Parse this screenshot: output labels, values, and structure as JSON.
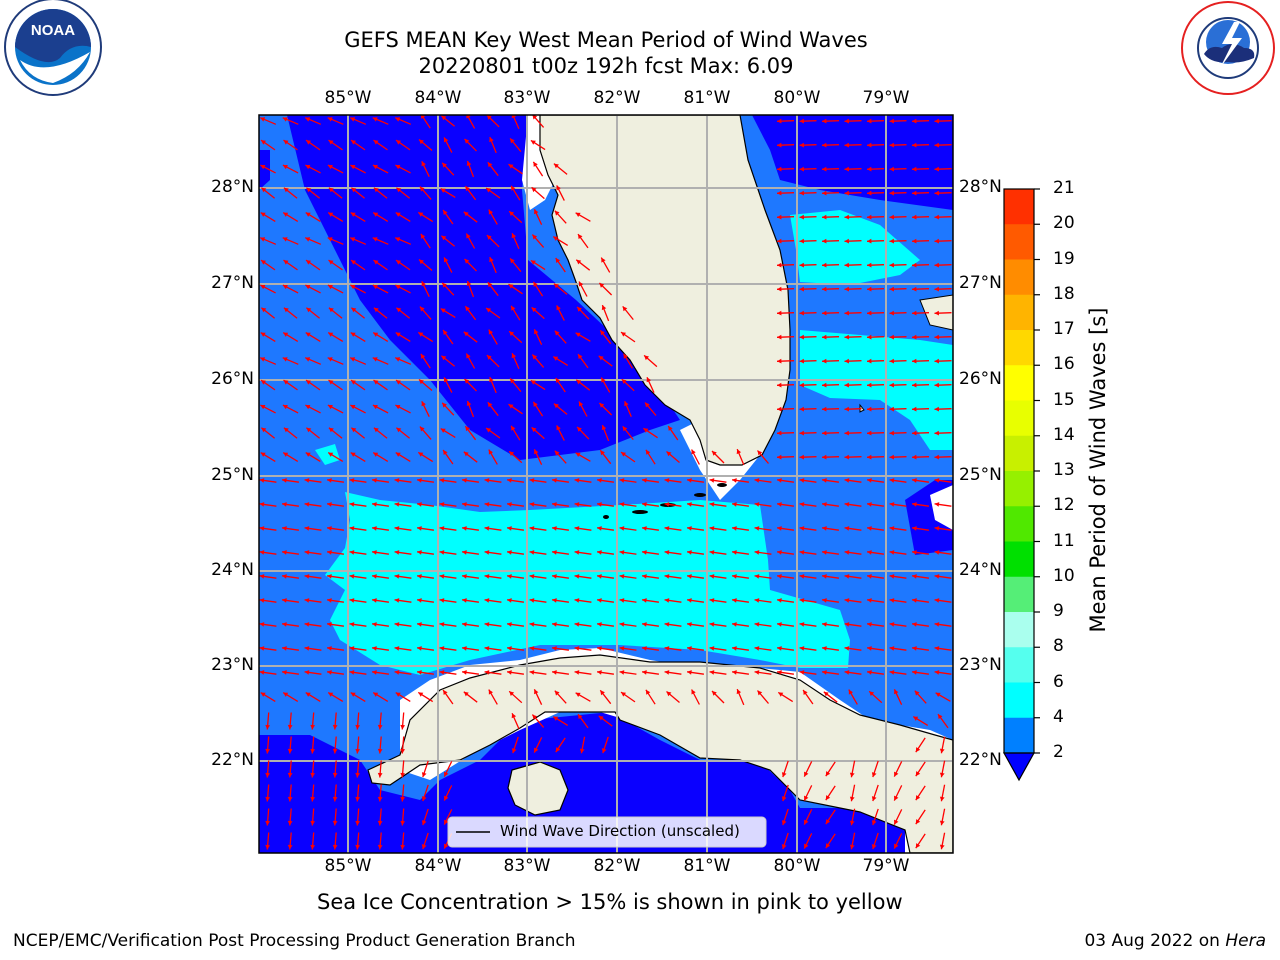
{
  "header": {
    "title_line1": "GEFS MEAN Key West Mean Period of Wind Waves",
    "title_line2": "20220801 t00z 192h fcst   Max: 6.09"
  },
  "logos": {
    "left": "noaa-logo",
    "right": "national-weather-service-logo",
    "left_text": "NOAA",
    "left_ring_text": "NATIONAL OCEANIC AND ATMOSPHERIC ADMINISTRATION · U.S. DEPARTMENT OF COMMERCE",
    "right_ring_text": "NATIONAL WEATHER SERVICE"
  },
  "map": {
    "lon_ticks": [
      "85°W",
      "84°W",
      "83°W",
      "82°W",
      "81°W",
      "80°W",
      "79°W"
    ],
    "lat_ticks": [
      "28°N",
      "27°N",
      "26°N",
      "25°N",
      "24°N",
      "23°N",
      "22°N"
    ],
    "legend_label": "Wind Wave Direction (unscaled)",
    "arrow_color": "#ff0000",
    "land_color": "#efefdf",
    "grid_color": "#b0b0b0"
  },
  "colorbar": {
    "label": "Mean Period of Wind Waves [s]",
    "ticks": [
      "21",
      "20",
      "19",
      "18",
      "17",
      "16",
      "15",
      "14",
      "13",
      "12",
      "11",
      "10",
      "9",
      "8",
      "6",
      "4",
      "2"
    ],
    "colors": [
      "#ff0000",
      "#ff3000",
      "#ff5a00",
      "#ff8c00",
      "#ffb400",
      "#ffd800",
      "#ffff00",
      "#e8ff00",
      "#c8f000",
      "#96f000",
      "#50e800",
      "#00e000",
      "#55ee77",
      "#aaffee",
      "#55ffee",
      "#00ffff",
      "#0080ff"
    ],
    "under_color": "#0000ff"
  },
  "caption": "Sea Ice Concentration > 15% is shown in pink to yellow",
  "footer": {
    "left": "NCEP/EMC/Verification Post Processing Product Generation Branch",
    "right_date": "03 Aug 2022 on",
    "right_host": "Hera"
  }
}
